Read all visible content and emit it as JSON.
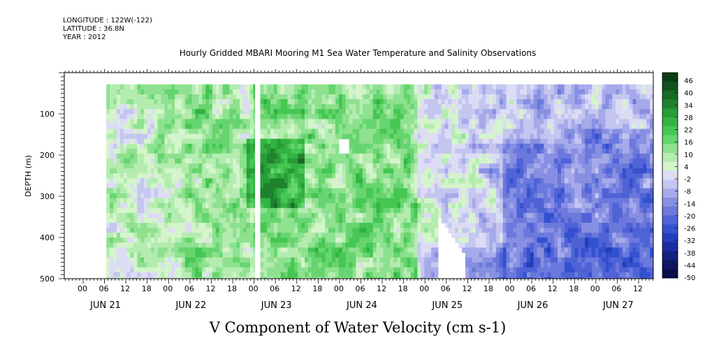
{
  "header": {
    "longitude": "LONGITUDE : 122W(-122)",
    "latitude": "LATITUDE : 36.8N",
    "year": "YEAR : 2012"
  },
  "chart_data": {
    "type": "heatmap",
    "title": "Hourly Gridded MBARI Mooring M1 Sea Water Temperature and Salinity Observations",
    "xlabel": "V Component of Water Velocity (cm s-1)",
    "ylabel": "DEPTH (m)",
    "ylim": [
      500,
      0
    ],
    "y_ticks": [
      100,
      200,
      300,
      400,
      500
    ],
    "x_hour_ticks": [
      "00",
      "06",
      "12",
      "18",
      "00",
      "06",
      "12",
      "18",
      "00",
      "06",
      "12",
      "18",
      "00",
      "06",
      "12",
      "18",
      "00",
      "06",
      "12",
      "18",
      "00",
      "06",
      "12",
      "18",
      "00",
      "06",
      "12"
    ],
    "days": [
      "JUN 21",
      "JUN 22",
      "JUN 23",
      "JUN 24",
      "JUN 25",
      "JUN 26",
      "JUN 27"
    ],
    "colorbar": {
      "labels": [
        "46",
        "40",
        "34",
        "28",
        "22",
        "16",
        "10",
        "4",
        "-2",
        "-8",
        "-14",
        "-20",
        "-26",
        "-32",
        "-38",
        "-44",
        "-50"
      ],
      "range": [
        -50,
        50
      ],
      "colors_top_to_bottom": [
        "#0b3d14",
        "#11521c",
        "#186a25",
        "#1f822e",
        "#279c37",
        "#32b341",
        "#46c653",
        "#66d56f",
        "#8ee18f",
        "#b4ecb0",
        "#d4f4cb",
        "#dcdcf5",
        "#c4c6f0",
        "#a6aaea",
        "#878fe2",
        "#6b78dc",
        "#4f63d7",
        "#3350cf",
        "#233dbb",
        "#1a2d9e",
        "#142080",
        "#0f1663",
        "#0a0e4a"
      ]
    },
    "data_start_day_offset": 0.28,
    "gap_day_range": [
      2.02,
      2.08
    ],
    "summary": "Positive (green) V velocities dominate Jun 21 - Jun 24 in upper 300 m, strongest near 230 m on Jun 23 (~28-34 cm/s). Negative (blue) velocities dominate Jun 25 - Jun 27, reaching about -20 to -26 cm/s below 300 m."
  }
}
